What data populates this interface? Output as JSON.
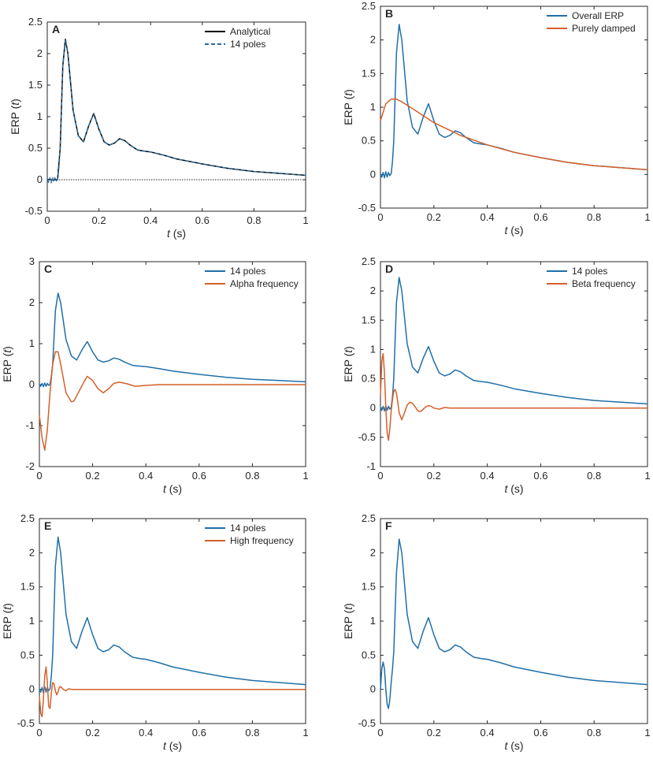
{
  "chart_data": [
    {
      "panel": "A",
      "type": "line",
      "xlabel_italic": "t",
      "xlabel_unit": "(s)",
      "ylabel_prefix": "ERP (",
      "ylabel_italic": "t",
      "ylabel_suffix": ")",
      "xlim": [
        0,
        1
      ],
      "ylim": [
        -0.5,
        2.5
      ],
      "xticks": [
        0,
        0.2,
        0.4,
        0.6,
        0.8,
        1
      ],
      "xtick_labels": [
        "0",
        "0.2",
        "0.4",
        "0.6",
        "0.8",
        "1"
      ],
      "yticks": [
        -0.5,
        0,
        0.5,
        1,
        1.5,
        2,
        2.5
      ],
      "ytick_labels": [
        "-0.5",
        "0",
        "0.5",
        "1",
        "1.5",
        "2",
        "2.5"
      ],
      "legend_position": "top-right",
      "zero_line": true,
      "series": [
        {
          "name": "Analytical",
          "color": "#000000",
          "dash": "solid",
          "x": [
            0,
            0.01,
            0.02,
            0.03,
            0.04,
            0.05,
            0.06,
            0.07,
            0.08,
            0.1,
            0.12,
            0.14,
            0.16,
            0.18,
            0.2,
            0.22,
            0.24,
            0.26,
            0.28,
            0.3,
            0.32,
            0.35,
            0.38,
            0.4,
            0.45,
            0.5,
            0.6,
            0.7,
            0.8,
            0.9,
            1.0
          ],
          "y": [
            0,
            0,
            0,
            0,
            0,
            0.5,
            1.8,
            2.23,
            2.0,
            1.1,
            0.7,
            0.6,
            0.85,
            1.05,
            0.8,
            0.6,
            0.55,
            0.58,
            0.65,
            0.62,
            0.55,
            0.47,
            0.45,
            0.44,
            0.39,
            0.33,
            0.25,
            0.18,
            0.13,
            0.1,
            0.07
          ]
        },
        {
          "name": "14 poles",
          "color": "#2b6a99",
          "dash": "dashed",
          "x": [
            0,
            0.005,
            0.01,
            0.015,
            0.02,
            0.025,
            0.03,
            0.035,
            0.04,
            0.045,
            0.05,
            0.06,
            0.07,
            0.08,
            0.1,
            0.12,
            0.14,
            0.16,
            0.18,
            0.2,
            0.22,
            0.24,
            0.26,
            0.28,
            0.3,
            0.32,
            0.35,
            0.38,
            0.4,
            0.45,
            0.5,
            0.6,
            0.7,
            0.8,
            0.9,
            1.0
          ],
          "y": [
            0,
            -0.04,
            0.03,
            -0.05,
            0.04,
            -0.04,
            0.03,
            -0.02,
            0.01,
            0.2,
            0.5,
            1.8,
            2.23,
            2.0,
            1.1,
            0.7,
            0.6,
            0.85,
            1.05,
            0.8,
            0.6,
            0.55,
            0.58,
            0.65,
            0.62,
            0.55,
            0.47,
            0.45,
            0.44,
            0.39,
            0.33,
            0.25,
            0.18,
            0.13,
            0.1,
            0.07
          ]
        }
      ]
    },
    {
      "panel": "B",
      "type": "line",
      "xlabel_italic": "t",
      "xlabel_unit": "(s)",
      "ylabel_prefix": "ERP (",
      "ylabel_italic": "t",
      "ylabel_suffix": ")",
      "xlim": [
        0,
        1
      ],
      "ylim": [
        -0.5,
        2.5
      ],
      "xticks": [
        0,
        0.2,
        0.4,
        0.6,
        0.8,
        1
      ],
      "xtick_labels": [
        "0",
        "0.2",
        "0.4",
        "0.6",
        "0.8",
        "1"
      ],
      "yticks": [
        -0.5,
        0,
        0.5,
        1,
        1.5,
        2,
        2.5
      ],
      "ytick_labels": [
        "-0.5",
        "0",
        "0.5",
        "1",
        "1.5",
        "2",
        "2.5"
      ],
      "legend_position": "top-right",
      "series": [
        {
          "name": "Overall ERP",
          "color": "#1f6fa8",
          "x": [
            0,
            0.005,
            0.01,
            0.015,
            0.02,
            0.025,
            0.03,
            0.035,
            0.04,
            0.045,
            0.05,
            0.06,
            0.07,
            0.08,
            0.1,
            0.12,
            0.14,
            0.16,
            0.18,
            0.2,
            0.22,
            0.24,
            0.26,
            0.28,
            0.3,
            0.32,
            0.35,
            0.38,
            0.4,
            0.45,
            0.5,
            0.6,
            0.7,
            0.8,
            0.9,
            1.0
          ],
          "y": [
            0,
            -0.04,
            0.03,
            -0.05,
            0.04,
            -0.04,
            0.03,
            -0.02,
            0.01,
            0.2,
            0.5,
            1.8,
            2.23,
            2.0,
            1.1,
            0.7,
            0.6,
            0.85,
            1.05,
            0.8,
            0.6,
            0.55,
            0.58,
            0.65,
            0.62,
            0.55,
            0.47,
            0.45,
            0.44,
            0.39,
            0.33,
            0.25,
            0.18,
            0.13,
            0.1,
            0.07
          ]
        },
        {
          "name": "Purely damped",
          "color": "#d4602a",
          "x": [
            0,
            0.02,
            0.04,
            0.06,
            0.08,
            0.1,
            0.15,
            0.2,
            0.3,
            0.4,
            0.5,
            0.6,
            0.7,
            0.8,
            0.9,
            1.0
          ],
          "y": [
            0.8,
            1.05,
            1.12,
            1.12,
            1.08,
            1.03,
            0.9,
            0.77,
            0.58,
            0.44,
            0.33,
            0.25,
            0.18,
            0.13,
            0.1,
            0.07
          ]
        }
      ]
    },
    {
      "panel": "C",
      "type": "line",
      "xlabel_italic": "t",
      "xlabel_unit": "(s)",
      "ylabel_prefix": "ERP (",
      "ylabel_italic": "t",
      "ylabel_suffix": ")",
      "xlim": [
        0,
        1
      ],
      "ylim": [
        -2,
        3
      ],
      "xticks": [
        0,
        0.2,
        0.4,
        0.6,
        0.8,
        1
      ],
      "xtick_labels": [
        "0",
        "0.2",
        "0.4",
        "0.6",
        "0.8",
        "1"
      ],
      "yticks": [
        -2,
        -1,
        0,
        1,
        2,
        3
      ],
      "ytick_labels": [
        "-2",
        "-1",
        "0",
        "1",
        "2",
        "3"
      ],
      "legend_position": "top-right",
      "series": [
        {
          "name": "14 poles",
          "color": "#1f6fa8",
          "x": [
            0,
            0.005,
            0.01,
            0.015,
            0.02,
            0.025,
            0.03,
            0.035,
            0.04,
            0.045,
            0.05,
            0.06,
            0.07,
            0.08,
            0.1,
            0.12,
            0.14,
            0.16,
            0.18,
            0.2,
            0.22,
            0.24,
            0.26,
            0.28,
            0.3,
            0.32,
            0.35,
            0.38,
            0.4,
            0.45,
            0.5,
            0.6,
            0.7,
            0.8,
            0.9,
            1.0
          ],
          "y": [
            0,
            -0.04,
            0.03,
            -0.05,
            0.04,
            -0.04,
            0.03,
            -0.02,
            0.01,
            0.2,
            0.5,
            1.8,
            2.23,
            2.0,
            1.1,
            0.7,
            0.6,
            0.85,
            1.05,
            0.8,
            0.6,
            0.55,
            0.58,
            0.65,
            0.62,
            0.55,
            0.47,
            0.45,
            0.44,
            0.39,
            0.33,
            0.25,
            0.18,
            0.13,
            0.1,
            0.07
          ]
        },
        {
          "name": "Alpha frequency",
          "color": "#d4602a",
          "x": [
            0,
            0.01,
            0.02,
            0.03,
            0.04,
            0.05,
            0.06,
            0.07,
            0.08,
            0.1,
            0.12,
            0.13,
            0.15,
            0.17,
            0.18,
            0.2,
            0.22,
            0.24,
            0.26,
            0.28,
            0.3,
            0.33,
            0.36,
            0.4,
            0.45,
            0.5,
            0.6,
            0.8,
            1.0
          ],
          "y": [
            -0.75,
            -1.3,
            -1.6,
            -1.1,
            -0.2,
            0.5,
            0.8,
            0.8,
            0.5,
            -0.2,
            -0.42,
            -0.4,
            -0.15,
            0.1,
            0.2,
            0.1,
            -0.1,
            -0.2,
            -0.1,
            0.03,
            0.06,
            0.02,
            -0.04,
            -0.02,
            0,
            0,
            0,
            0,
            0
          ]
        }
      ]
    },
    {
      "panel": "D",
      "type": "line",
      "xlabel_italic": "t",
      "xlabel_unit": "(s)",
      "ylabel_prefix": "ERP (",
      "ylabel_italic": "t",
      "ylabel_suffix": ")",
      "xlim": [
        0,
        1
      ],
      "ylim": [
        -1,
        2.5
      ],
      "xticks": [
        0,
        0.2,
        0.4,
        0.6,
        0.8,
        1
      ],
      "xtick_labels": [
        "0",
        "0.2",
        "0.4",
        "0.6",
        "0.8",
        "1"
      ],
      "yticks": [
        -1,
        -0.5,
        0,
        0.5,
        1,
        1.5,
        2,
        2.5
      ],
      "ytick_labels": [
        "-1",
        "-0.5",
        "0",
        "0.5",
        "1",
        "1.5",
        "2",
        "2.5"
      ],
      "legend_position": "top-right",
      "series": [
        {
          "name": "14 poles",
          "color": "#1f6fa8",
          "x": [
            0,
            0.005,
            0.01,
            0.015,
            0.02,
            0.025,
            0.03,
            0.035,
            0.04,
            0.045,
            0.05,
            0.06,
            0.07,
            0.08,
            0.1,
            0.12,
            0.14,
            0.16,
            0.18,
            0.2,
            0.22,
            0.24,
            0.26,
            0.28,
            0.3,
            0.32,
            0.35,
            0.38,
            0.4,
            0.45,
            0.5,
            0.6,
            0.7,
            0.8,
            0.9,
            1.0
          ],
          "y": [
            0,
            -0.04,
            0.03,
            -0.05,
            0.04,
            -0.04,
            0.03,
            -0.02,
            0.01,
            0.2,
            0.5,
            1.8,
            2.23,
            2.0,
            1.1,
            0.7,
            0.6,
            0.85,
            1.05,
            0.8,
            0.6,
            0.55,
            0.58,
            0.65,
            0.62,
            0.55,
            0.47,
            0.45,
            0.44,
            0.39,
            0.33,
            0.25,
            0.18,
            0.13,
            0.1,
            0.07
          ]
        },
        {
          "name": "Beta frequency",
          "color": "#d4602a",
          "x": [
            0,
            0.005,
            0.01,
            0.015,
            0.02,
            0.025,
            0.03,
            0.035,
            0.04,
            0.045,
            0.05,
            0.055,
            0.06,
            0.065,
            0.07,
            0.08,
            0.09,
            0.1,
            0.11,
            0.12,
            0.13,
            0.14,
            0.15,
            0.16,
            0.17,
            0.18,
            0.19,
            0.2,
            0.22,
            0.24,
            0.26,
            0.3,
            0.4,
            0.6,
            0.8,
            1.0
          ],
          "y": [
            0.2,
            0.8,
            0.93,
            0.6,
            0.0,
            -0.42,
            -0.55,
            -0.35,
            -0.05,
            0.15,
            0.28,
            0.32,
            0.25,
            0.1,
            -0.08,
            -0.2,
            -0.08,
            0.05,
            0.1,
            0.08,
            0.02,
            -0.05,
            -0.06,
            -0.02,
            0.02,
            0.04,
            0.03,
            0.0,
            -0.02,
            0.01,
            0.0,
            0.0,
            0.0,
            0.0,
            0.0,
            0.0
          ]
        }
      ]
    },
    {
      "panel": "E",
      "type": "line",
      "xlabel_italic": "t",
      "xlabel_unit": "(s)",
      "ylabel_prefix": "ERP (",
      "ylabel_italic": "t",
      "ylabel_suffix": ")",
      "xlim": [
        0,
        1
      ],
      "ylim": [
        -0.5,
        2.5
      ],
      "xticks": [
        0,
        0.2,
        0.4,
        0.6,
        0.8,
        1
      ],
      "xtick_labels": [
        "0",
        "0.2",
        "0.4",
        "0.6",
        "0.8",
        "1"
      ],
      "yticks": [
        -0.5,
        0,
        0.5,
        1,
        1.5,
        2,
        2.5
      ],
      "ytick_labels": [
        "-0.5",
        "0",
        "0.5",
        "1",
        "1.5",
        "2",
        "2.5"
      ],
      "legend_position": "top-right",
      "series": [
        {
          "name": "14 poles",
          "color": "#1f6fa8",
          "x": [
            0,
            0.005,
            0.01,
            0.015,
            0.02,
            0.025,
            0.03,
            0.035,
            0.04,
            0.045,
            0.05,
            0.06,
            0.07,
            0.08,
            0.1,
            0.12,
            0.14,
            0.16,
            0.18,
            0.2,
            0.22,
            0.24,
            0.26,
            0.28,
            0.3,
            0.32,
            0.35,
            0.38,
            0.4,
            0.45,
            0.5,
            0.6,
            0.7,
            0.8,
            0.9,
            1.0
          ],
          "y": [
            0,
            -0.04,
            0.03,
            -0.05,
            0.04,
            -0.04,
            0.03,
            -0.02,
            0.01,
            0.2,
            0.5,
            1.8,
            2.23,
            2.0,
            1.1,
            0.7,
            0.6,
            0.85,
            1.05,
            0.8,
            0.6,
            0.55,
            0.58,
            0.65,
            0.62,
            0.55,
            0.47,
            0.45,
            0.44,
            0.39,
            0.33,
            0.25,
            0.18,
            0.13,
            0.1,
            0.07
          ]
        },
        {
          "name": "High frequency",
          "color": "#d4602a",
          "x": [
            0,
            0.005,
            0.01,
            0.015,
            0.02,
            0.025,
            0.03,
            0.035,
            0.04,
            0.045,
            0.05,
            0.055,
            0.06,
            0.065,
            0.07,
            0.075,
            0.08,
            0.09,
            0.1,
            0.11,
            0.12,
            0.14,
            0.2,
            0.4,
            0.6,
            0.8,
            1.0
          ],
          "y": [
            -0.1,
            -0.35,
            -0.4,
            -0.15,
            0.2,
            0.33,
            0.1,
            -0.25,
            -0.28,
            -0.05,
            0.1,
            0.08,
            -0.02,
            -0.08,
            -0.04,
            0.03,
            0.04,
            0.0,
            -0.02,
            0.01,
            0.0,
            0.0,
            0.0,
            0.0,
            0.0,
            0.0,
            0.0
          ]
        }
      ]
    },
    {
      "panel": "F",
      "type": "line",
      "xlabel_italic": "t",
      "xlabel_unit": "(s)",
      "ylabel_prefix": "ERP (",
      "ylabel_italic": "t",
      "ylabel_suffix": ")",
      "xlim": [
        0,
        1
      ],
      "ylim": [
        -0.5,
        2.5
      ],
      "xticks": [
        0,
        0.2,
        0.4,
        0.6,
        0.8,
        1
      ],
      "xtick_labels": [
        "0",
        "0.2",
        "0.4",
        "0.6",
        "0.8",
        "1"
      ],
      "yticks": [
        -0.5,
        0,
        0.5,
        1,
        1.5,
        2,
        2.5
      ],
      "ytick_labels": [
        "-0.5",
        "0",
        "0.5",
        "1",
        "1.5",
        "2",
        "2.5"
      ],
      "legend_position": "none",
      "series": [
        {
          "name": "",
          "color": "#1f6fa8",
          "x": [
            0,
            0.005,
            0.01,
            0.015,
            0.02,
            0.025,
            0.03,
            0.035,
            0.04,
            0.045,
            0.05,
            0.06,
            0.07,
            0.08,
            0.1,
            0.12,
            0.14,
            0.16,
            0.18,
            0.2,
            0.22,
            0.24,
            0.26,
            0.28,
            0.3,
            0.32,
            0.35,
            0.38,
            0.4,
            0.45,
            0.5,
            0.6,
            0.7,
            0.8,
            0.9,
            1.0
          ],
          "y": [
            0,
            0.3,
            0.4,
            0.3,
            0.0,
            -0.22,
            -0.28,
            -0.15,
            0.1,
            0.3,
            0.55,
            1.7,
            2.2,
            2.0,
            1.1,
            0.7,
            0.6,
            0.85,
            1.05,
            0.8,
            0.6,
            0.55,
            0.58,
            0.65,
            0.62,
            0.55,
            0.47,
            0.45,
            0.44,
            0.39,
            0.33,
            0.25,
            0.18,
            0.13,
            0.1,
            0.07
          ]
        }
      ]
    }
  ]
}
